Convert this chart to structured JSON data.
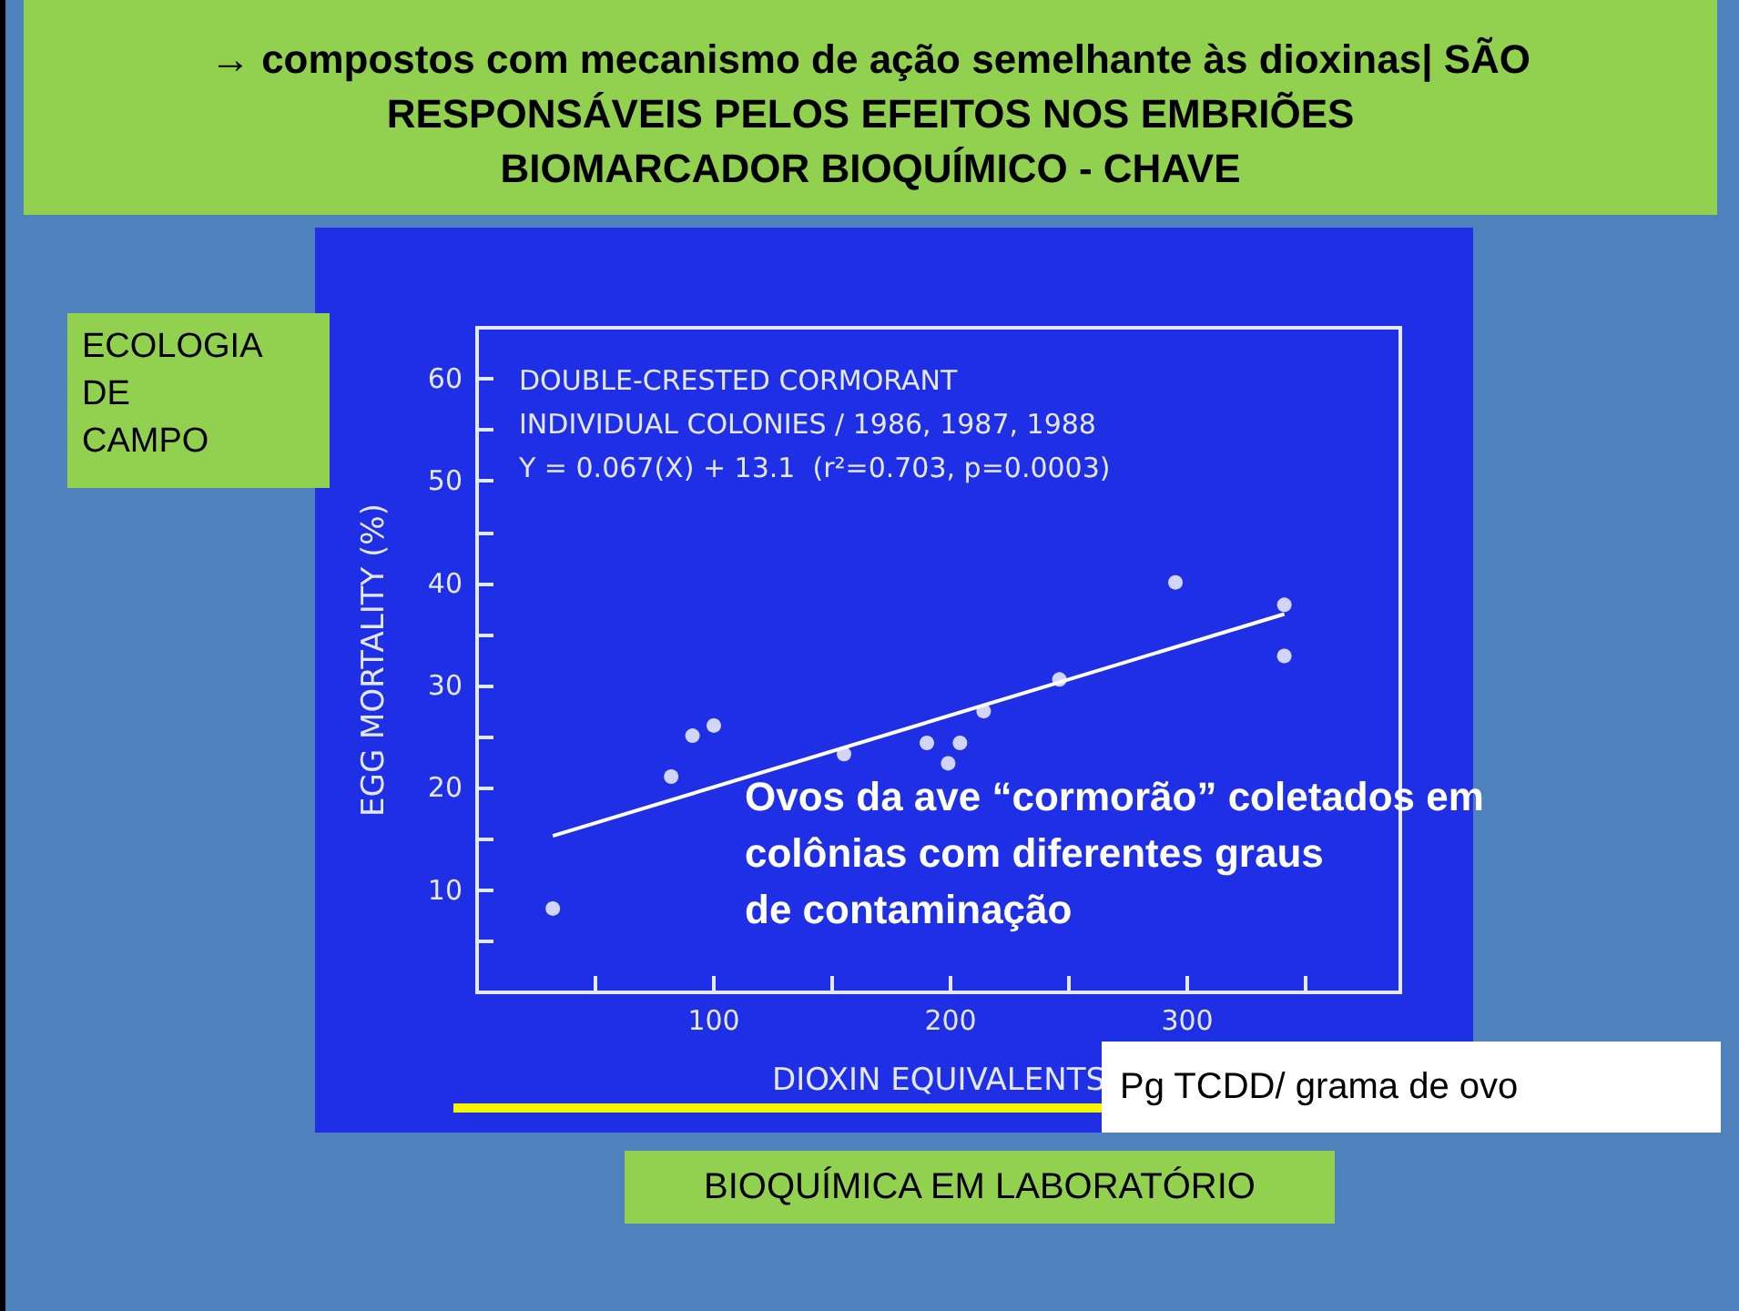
{
  "chart_data": {
    "type": "scatter",
    "title": "→ compostos com mecanismo de ação semelhante às dioxinas| SÃO\nRESPONSÁVEIS PELOS EFEITOS NOS EMBRIÕES\nBIOMARCADOR BIOQUÍMICO - CHAVE",
    "xlabel": "DIOXIN EQUIVALENTS",
    "ylabel": "EGG MORTALITY (%)",
    "annotations": [
      "DOUBLE-CRESTED CORMORANT\nINDIVIDUAL COLONIES / 1986, 1987, 1988\nY = 0.067(X) + 13.1  (r²=0.703, p=0.0003)",
      "Ovos da ave “cormorão” coletados em\ncolônias com diferentes graus\nde contaminação",
      "ECOLOGIA\nDE\nCAMPO",
      "Pg TCDD/ grama de ovo",
      "BIOQUÍMICA EM LABORATÓRIO"
    ],
    "series": [
      {
        "color": "#ffffff",
        "x": [
          32,
          82,
          91,
          100,
          155,
          190,
          199,
          204,
          214,
          246,
          295,
          341,
          341
        ],
        "values": [
          8.2,
          21.1,
          25.1,
          26.1,
          23.3,
          24.4,
          22.4,
          24.4,
          27.5,
          30.6,
          40.1,
          37.9,
          32.9
        ]
      },
      {
        "type": "line",
        "color": "#ffffff",
        "x": [
          32,
          341
        ],
        "values": [
          15.3,
          37.0
        ],
        "marker": "none"
      }
    ],
    "xlim": [
      0,
      390
    ],
    "xticks": [
      {
        "value": 50,
        "label": null
      },
      100,
      {
        "value": 150,
        "label": null
      },
      200,
      {
        "value": 250,
        "label": null
      },
      300,
      {
        "value": 350,
        "label": null
      }
    ],
    "ylim": [
      0,
      65
    ],
    "yticks": [
      {
        "value": 5,
        "label": null
      },
      10,
      {
        "value": 15,
        "label": null
      },
      20,
      {
        "value": 25,
        "label": null
      },
      30,
      {
        "value": 35,
        "label": null
      },
      40,
      {
        "value": 45,
        "label": null
      },
      50,
      {
        "value": 55,
        "label": null
      },
      60
    ],
    "marker": "circle",
    "grid": false
  }
}
